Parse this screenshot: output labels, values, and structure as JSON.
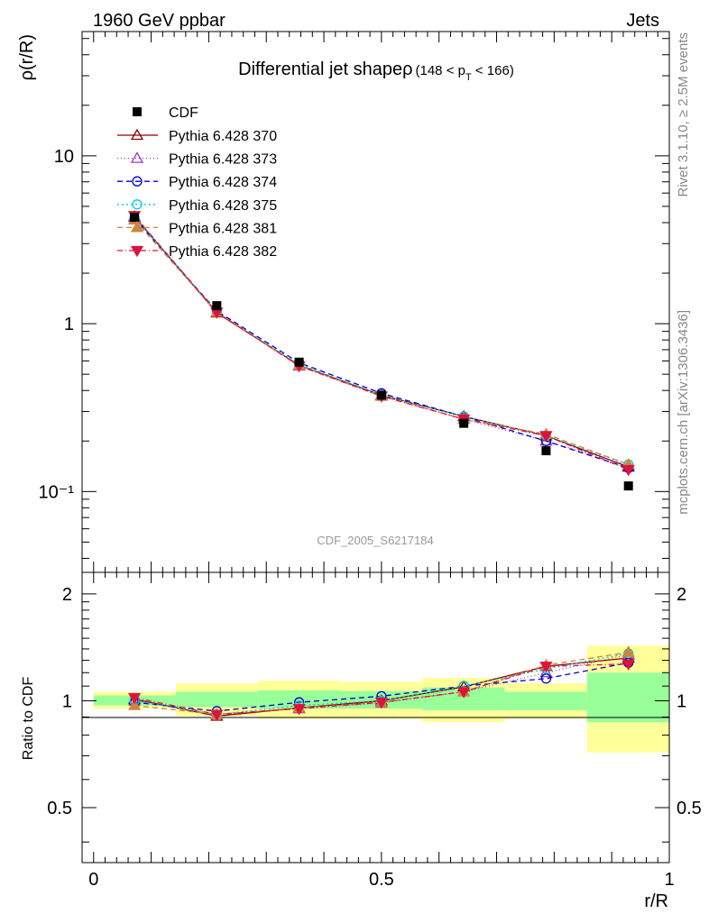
{
  "header": {
    "left": "1960 GeV ppbar",
    "right": "Jets"
  },
  "side": {
    "rivet": "Rivet 3.1.10, ≥ 2.5M events",
    "mcplots": "mcplots.cern.ch [arXiv:1306.3436]"
  },
  "chart_data": {
    "type": "line",
    "title_main": "Differential jet shapeρ",
    "title_range_a": "(148 < p",
    "title_range_sub": "T",
    "title_range_b": " < 166)",
    "watermark": "CDF_2005_S6217184",
    "main_ylabel": "ρ(r/R)",
    "ratio_ylabel": "Ratio to CDF",
    "xlabel": "r/R",
    "xlim": [
      -0.02,
      1.0
    ],
    "main_ylim": [
      0.033,
      55
    ],
    "main_yscale": "log",
    "ratio_ylim": [
      0.35,
      2.3
    ],
    "ratio_yscale": "log",
    "x_ticks": [
      {
        "v": 0,
        "label": "0"
      },
      {
        "v": 0.5,
        "label": "0.5"
      },
      {
        "v": 1,
        "label": "1"
      }
    ],
    "main_y_ticks": [
      {
        "v": 0.1,
        "label": "10⁻¹"
      },
      {
        "v": 1,
        "label": "1"
      },
      {
        "v": 10,
        "label": "10"
      }
    ],
    "ratio_y_ticks": [
      {
        "v": 0.5,
        "label": "0.5"
      },
      {
        "v": 1,
        "label": "1"
      },
      {
        "v": 2,
        "label": "2"
      }
    ],
    "x": [
      0.071,
      0.214,
      0.357,
      0.5,
      0.643,
      0.786,
      0.929
    ],
    "reference": {
      "name": "CDF",
      "values": [
        4.3,
        1.28,
        0.59,
        0.375,
        0.255,
        0.175,
        0.108
      ],
      "bins": [
        {
          "lo": 0.0,
          "hi": 0.143,
          "inner": [
            0.97,
            1.035
          ],
          "outer": [
            0.95,
            1.06
          ]
        },
        {
          "lo": 0.143,
          "hi": 0.286,
          "inner": [
            0.96,
            1.06
          ],
          "outer": [
            0.905,
            1.12
          ]
        },
        {
          "lo": 0.286,
          "hi": 0.429,
          "inner": [
            0.95,
            1.07
          ],
          "outer": [
            0.89,
            1.14
          ]
        },
        {
          "lo": 0.429,
          "hi": 0.571,
          "inner": [
            0.95,
            1.065
          ],
          "outer": [
            0.89,
            1.13
          ]
        },
        {
          "lo": 0.571,
          "hi": 0.714,
          "inner": [
            0.94,
            1.09
          ],
          "outer": [
            0.87,
            1.16
          ]
        },
        {
          "lo": 0.714,
          "hi": 0.857,
          "inner": [
            0.94,
            1.06
          ],
          "outer": [
            0.89,
            1.12
          ]
        },
        {
          "lo": 0.857,
          "hi": 1.0,
          "inner": [
            0.87,
            1.2
          ],
          "outer": [
            0.715,
            1.43
          ]
        }
      ]
    },
    "series": [
      {
        "name": "Pythia 6.428 370",
        "color": "#8b0000",
        "dash": "",
        "marker": "triangle-up-open",
        "values": [
          4.35,
          1.16,
          0.565,
          0.375,
          0.28,
          0.215,
          0.14
        ],
        "ratio": [
          1.01,
          0.905,
          0.955,
          1.0,
          1.095,
          1.25,
          1.32
        ]
      },
      {
        "name": "Pythia 6.428 373",
        "color": "#9932cc",
        "dash": "1 3",
        "marker": "triangle-up-open",
        "values": [
          4.3,
          1.17,
          0.56,
          0.37,
          0.27,
          0.2,
          0.143
        ],
        "ratio": [
          1.0,
          0.915,
          0.95,
          0.985,
          1.06,
          1.2,
          1.35
        ]
      },
      {
        "name": "Pythia 6.428 374",
        "color": "#0000cd",
        "dash": "6 4",
        "marker": "circle-open",
        "values": [
          4.25,
          1.19,
          0.585,
          0.385,
          0.28,
          0.2,
          0.138
        ],
        "ratio": [
          0.99,
          0.935,
          0.99,
          1.03,
          1.1,
          1.155,
          1.28
        ]
      },
      {
        "name": "Pythia 6.428 375",
        "color": "#00ced1",
        "dash": "2 3",
        "marker": "circle-open",
        "values": [
          4.3,
          1.17,
          0.575,
          0.375,
          0.28,
          0.215,
          0.145
        ],
        "ratio": [
          1.0,
          0.915,
          0.97,
          1.0,
          1.1,
          1.23,
          1.36
        ]
      },
      {
        "name": "Pythia 6.428 381",
        "color": "#cd853f",
        "dash": "6 4",
        "marker": "triangle-up-filled",
        "values": [
          4.15,
          1.17,
          0.565,
          0.37,
          0.27,
          0.22,
          0.145
        ],
        "ratio": [
          0.97,
          0.915,
          0.955,
          0.99,
          1.06,
          1.26,
          1.37
        ]
      },
      {
        "name": "Pythia 6.428 382",
        "color": "#dc143c",
        "dash": "6 3 1 3",
        "marker": "triangle-down-filled",
        "values": [
          4.4,
          1.17,
          0.56,
          0.37,
          0.27,
          0.215,
          0.135
        ],
        "ratio": [
          1.02,
          0.915,
          0.95,
          0.99,
          1.06,
          1.25,
          1.27
        ]
      }
    ]
  }
}
